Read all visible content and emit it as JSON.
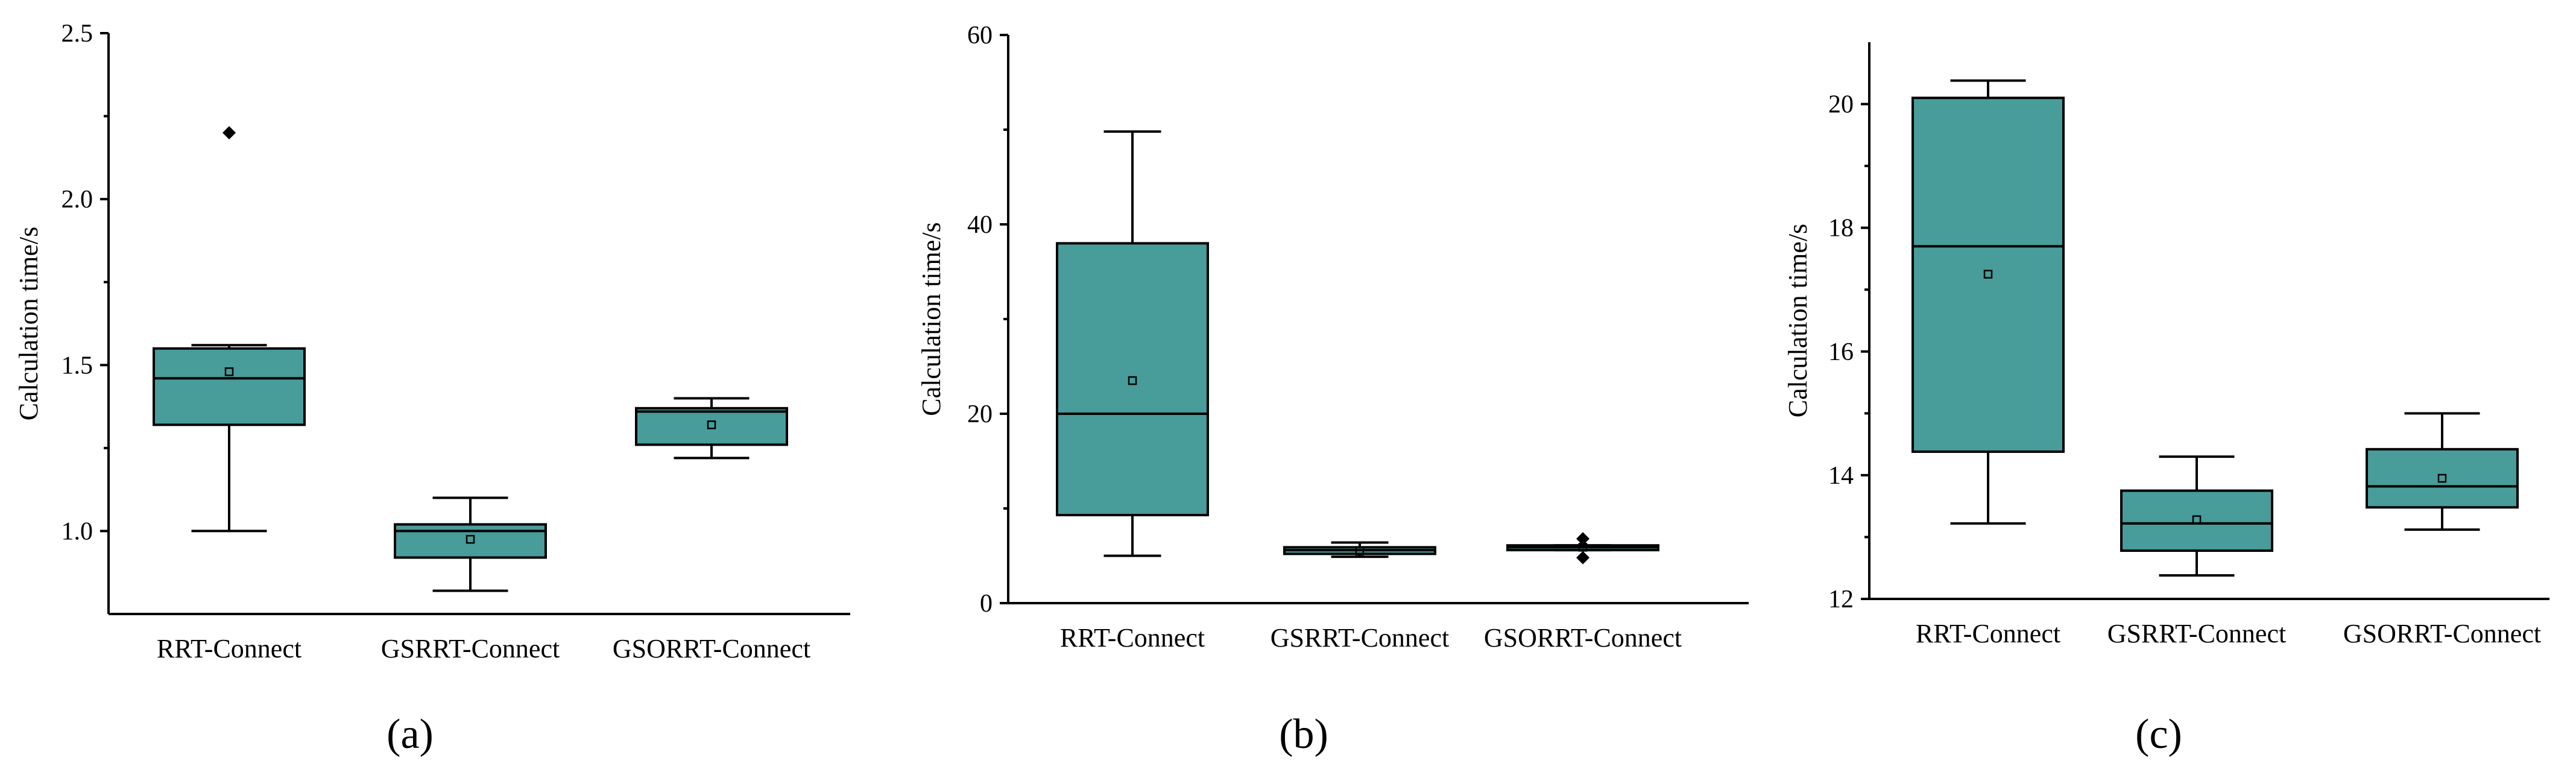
{
  "box_color": "#489c9a",
  "chart_data": [
    {
      "type": "box",
      "panel_label": "(a)",
      "ylabel": "Calculation time/s",
      "ylim": [
        0.75,
        2.5
      ],
      "yticks": [
        1.0,
        1.5,
        2.0,
        2.5
      ],
      "yticklabels": [
        "1.0",
        "1.5",
        "2.0",
        "2.5"
      ],
      "categories": [
        "RRT-Connect",
        "GSRRT-Connect",
        "GSORRT-Connect"
      ],
      "boxes": [
        {
          "whisker_low": 1.0,
          "q1": 1.32,
          "median": 1.46,
          "q3": 1.55,
          "whisker_high": 1.56,
          "mean": 1.48,
          "outliers": [
            2.2
          ]
        },
        {
          "whisker_low": 0.82,
          "q1": 0.92,
          "median": 1.0,
          "q3": 1.02,
          "whisker_high": 1.1,
          "mean": 0.975,
          "outliers": []
        },
        {
          "whisker_low": 1.22,
          "q1": 1.26,
          "median": 1.36,
          "q3": 1.37,
          "whisker_high": 1.4,
          "mean": 1.32,
          "outliers": []
        }
      ]
    },
    {
      "type": "box",
      "panel_label": "(b)",
      "ylabel": "Calculation time/s",
      "ylim": [
        0,
        60
      ],
      "yticks": [
        0,
        20,
        40,
        60
      ],
      "yticklabels": [
        "0",
        "20",
        "40",
        "60"
      ],
      "categories": [
        "RRT-Connect",
        "GSRRT-Connect",
        "GSORRT-Connect"
      ],
      "boxes": [
        {
          "whisker_low": 5.0,
          "q1": 9.3,
          "median": 20.0,
          "q3": 38.0,
          "whisker_high": 49.8,
          "mean": 23.5,
          "outliers": []
        },
        {
          "whisker_low": 4.9,
          "q1": 5.2,
          "median": 5.6,
          "q3": 5.9,
          "whisker_high": 6.4,
          "mean": 5.5,
          "outliers": []
        },
        {
          "whisker_low": 5.6,
          "q1": 5.6,
          "median": 5.9,
          "q3": 6.1,
          "whisker_high": 6.1,
          "mean": 5.9,
          "outliers": [
            6.8,
            4.8
          ]
        }
      ]
    },
    {
      "type": "box",
      "panel_label": "(c)",
      "ylabel": "Calculation time/s",
      "ylim": [
        12,
        21
      ],
      "yticks": [
        12,
        14,
        16,
        18,
        20
      ],
      "yticklabels": [
        "12",
        "14",
        "16",
        "18",
        "20"
      ],
      "categories": [
        "RRT-Connect",
        "GSRRT-Connect",
        "GSORRT-Connect"
      ],
      "boxes": [
        {
          "whisker_low": 13.22,
          "q1": 14.38,
          "median": 17.7,
          "q3": 20.1,
          "whisker_high": 20.38,
          "mean": 17.25,
          "outliers": []
        },
        {
          "whisker_low": 12.38,
          "q1": 12.78,
          "median": 13.22,
          "q3": 13.75,
          "whisker_high": 14.3,
          "mean": 13.28,
          "outliers": []
        },
        {
          "whisker_low": 13.12,
          "q1": 13.48,
          "median": 13.82,
          "q3": 14.42,
          "whisker_high": 15.0,
          "mean": 13.95,
          "outliers": []
        }
      ]
    }
  ]
}
